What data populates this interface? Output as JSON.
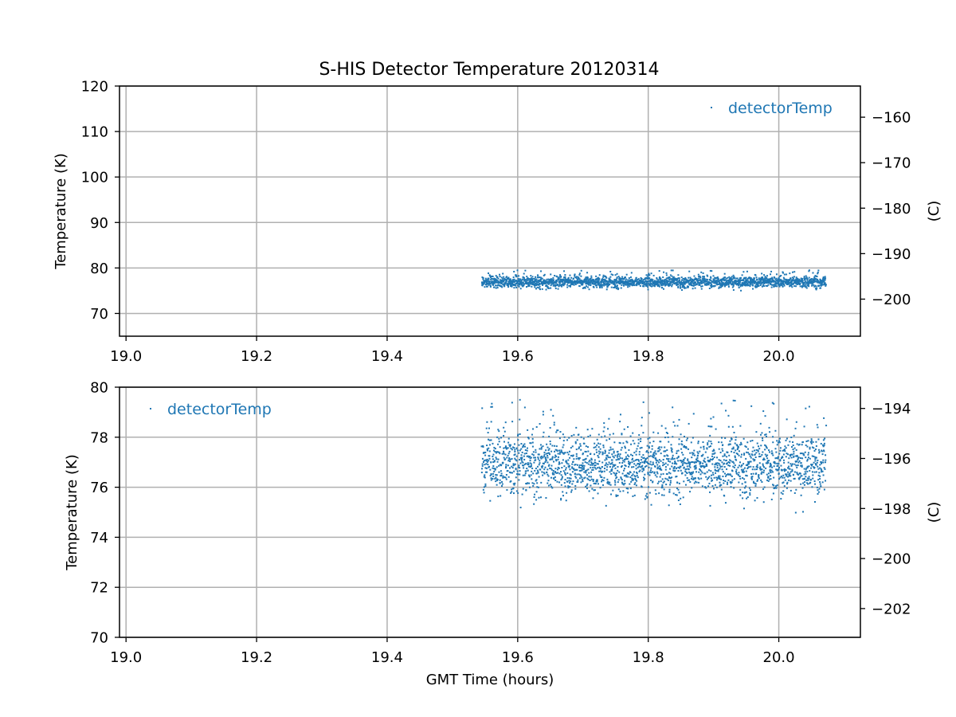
{
  "figure_title": "S-HIS Detector Temperature 20120314",
  "colors": {
    "series": "#1f77b4",
    "grid": "#b0b0b0",
    "axes": "#000000"
  },
  "chart_data": [
    {
      "type": "scatter",
      "panel": "top",
      "xlabel": "",
      "ylabel": "Temperature (K)",
      "ylabel_right": "(C)",
      "xlim": [
        18.99,
        20.125
      ],
      "ylim": [
        65,
        120
      ],
      "ylim_right_celsius": [
        -208.15,
        -153.15
      ],
      "xticks": [
        "19.0",
        "19.2",
        "19.4",
        "19.6",
        "19.8",
        "20.0"
      ],
      "yticks": [
        "70",
        "80",
        "90",
        "100",
        "110",
        "120"
      ],
      "yticks_right": [
        "−200",
        "−190",
        "−180",
        "−170",
        "−160"
      ],
      "grid": true,
      "legend": {
        "placement": "top-right",
        "label": "detectorTemp"
      },
      "series": [
        {
          "name": "detectorTemp",
          "x_range": [
            19.545,
            20.072
          ],
          "y_center": 76.9,
          "y_band": [
            75.0,
            79.5
          ],
          "y_core": [
            75.5,
            78.0
          ]
        }
      ]
    },
    {
      "type": "scatter",
      "panel": "bottom",
      "xlabel": "GMT Time (hours)",
      "ylabel": "Temperature (K)",
      "ylabel_right": "(C)",
      "xlim": [
        18.99,
        20.125
      ],
      "ylim": [
        70,
        80
      ],
      "ylim_right_celsius": [
        -203.15,
        -193.15
      ],
      "xticks": [
        "19.0",
        "19.2",
        "19.4",
        "19.6",
        "19.8",
        "20.0"
      ],
      "yticks": [
        "70",
        "72",
        "74",
        "76",
        "78",
        "80"
      ],
      "yticks_right": [
        "−202",
        "−200",
        "−198",
        "−196",
        "−194"
      ],
      "grid": true,
      "legend": {
        "placement": "top-left",
        "label": "detectorTemp"
      },
      "series": [
        {
          "name": "detectorTemp",
          "x_range": [
            19.545,
            20.072
          ],
          "y_center": 76.9,
          "y_band": [
            74.8,
            79.5
          ],
          "y_core": [
            75.5,
            78.0
          ]
        }
      ]
    }
  ]
}
